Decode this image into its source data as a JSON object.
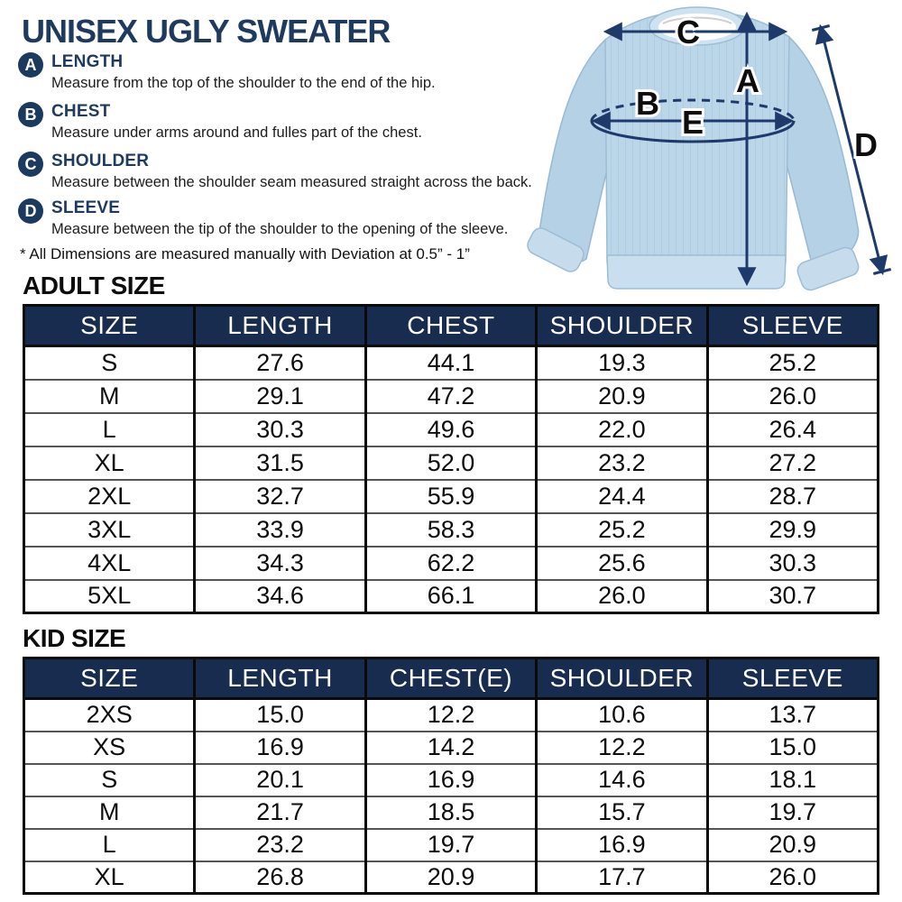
{
  "title": "UNISEX UGLY SWEATER",
  "measurements": [
    {
      "letter": "A",
      "name": "LENGTH",
      "description": "Measure from the top of the shoulder to the end of the hip."
    },
    {
      "letter": "B",
      "name": "CHEST",
      "description": "Measure under arms around and fulles part of the chest."
    },
    {
      "letter": "C",
      "name": "SHOULDER",
      "description": "Measure between the shoulder seam measured straight across the back."
    },
    {
      "letter": "D",
      "name": "SLEEVE",
      "description": "Measure between the tip of the shoulder to the opening of the sleeve."
    }
  ],
  "note": "* All Dimensions are measured manually with Deviation at 0.5” - 1”",
  "diagram": {
    "labels": {
      "a": "A",
      "b": "B",
      "c": "C",
      "d": "D",
      "e": "E"
    }
  },
  "adult": {
    "heading": "ADULT SIZE",
    "headers": [
      "SIZE",
      "LENGTH",
      "CHEST",
      "SHOULDER",
      "SLEEVE"
    ],
    "rows": [
      [
        "S",
        "27.6",
        "44.1",
        "19.3",
        "25.2"
      ],
      [
        "M",
        "29.1",
        "47.2",
        "20.9",
        "26.0"
      ],
      [
        "L",
        "30.3",
        "49.6",
        "22.0",
        "26.4"
      ],
      [
        "XL",
        "31.5",
        "52.0",
        "23.2",
        "27.2"
      ],
      [
        "2XL",
        "32.7",
        "55.9",
        "24.4",
        "28.7"
      ],
      [
        "3XL",
        "33.9",
        "58.3",
        "25.2",
        "29.9"
      ],
      [
        "4XL",
        "34.3",
        "62.2",
        "25.6",
        "30.3"
      ],
      [
        "5XL",
        "34.6",
        "66.1",
        "26.0",
        "30.7"
      ]
    ]
  },
  "kid": {
    "heading": "KID SIZE",
    "headers": [
      "SIZE",
      "LENGTH",
      "CHEST(E)",
      "SHOULDER",
      "SLEEVE"
    ],
    "rows": [
      [
        "2XS",
        "15.0",
        "12.2",
        "10.6",
        "13.7"
      ],
      [
        "XS",
        "16.9",
        "14.2",
        "12.2",
        "15.0"
      ],
      [
        "S",
        "20.1",
        "16.9",
        "14.6",
        "18.1"
      ],
      [
        "M",
        "21.7",
        "18.5",
        "15.7",
        "19.7"
      ],
      [
        "L",
        "23.2",
        "19.7",
        "16.9",
        "20.9"
      ],
      [
        "XL",
        "26.8",
        "20.9",
        "17.7",
        "26.0"
      ]
    ]
  },
  "colors": {
    "navy_text": "#1e3a5f",
    "table_header_bg": "#172c4e",
    "sweater_blue": "#bcd6e9",
    "arrow_navy": "#1d3a6a"
  }
}
